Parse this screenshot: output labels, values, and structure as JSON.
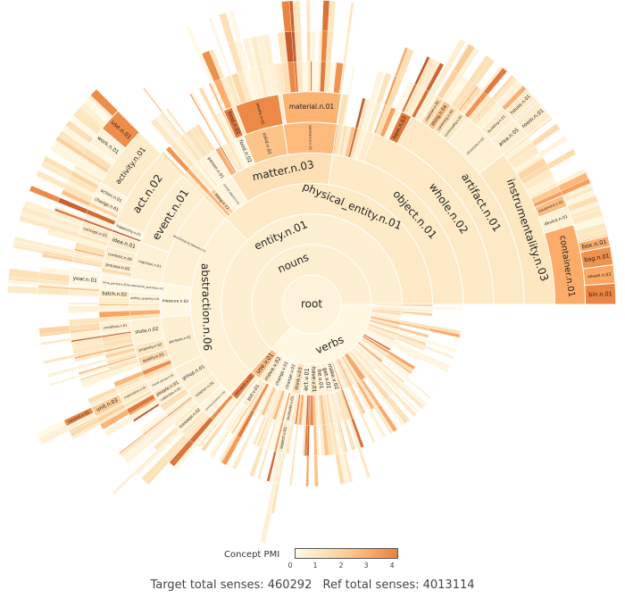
{
  "chart_data": {
    "type": "sunburst",
    "value_unit": "relative share of senses (out of 360)",
    "colorbar": {
      "title": "Concept PMI",
      "ticks": [
        "0",
        "1",
        "2",
        "3",
        "4"
      ],
      "range": [
        0,
        4
      ]
    },
    "colorscale": [
      "#fff9e6",
      "#fde5bd",
      "#fdcb94",
      "#fca864",
      "#e8813f",
      "#c4592b"
    ],
    "footer": {
      "target": "Target total senses: 460292",
      "ref": "Ref total senses: 4013114"
    },
    "tree": {
      "label": "root",
      "value": 360,
      "pmi": 0.3,
      "children": [
        {
          "label": "nouns",
          "value": 228,
          "pmi": 0.5,
          "children": [
            {
              "label": "entity.n.01",
              "value": 228,
              "pmi": 0.5,
              "children": [
                {
                  "label": "physical_entity.n.01",
                  "value": 135,
                  "pmi": 0.75,
                  "children": [
                    {
                      "label": "object.n.01",
                      "value": 82,
                      "pmi": 0.75,
                      "children": [
                        {
                          "label": "whole.n.02",
                          "value": 70,
                          "pmi": 0.75,
                          "children": [
                            {
                              "label": "artifact.n.01",
                              "value": 62,
                              "pmi": 0.8,
                              "children": [
                                {
                                  "label": "instrumentality.n.03",
                                  "value": 38,
                                  "pmi": 0.9,
                                  "children": [
                                    {
                                      "label": "container.n.01",
                                      "value": 17,
                                      "pmi": 2.9,
                                      "children": [
                                        {
                                          "label": "bin.n.01",
                                          "value": 4,
                                          "pmi": 3.9
                                        },
                                        {
                                          "label": "vessel.n.03",
                                          "value": 3.5,
                                          "pmi": 3.0
                                        },
                                        {
                                          "label": "bag.n.01",
                                          "value": 3.5,
                                          "pmi": 3.6
                                        },
                                        {
                                          "label": "box.n.01",
                                          "value": 2,
                                          "pmi": 2.9
                                        }
                                      ]
                                    },
                                    {
                                      "label": "device.n.01",
                                      "value": 4,
                                      "pmi": 0.4
                                    },
                                    {
                                      "label": "equipment.n.01",
                                      "value": 2.5,
                                      "pmi": 2.4
                                    }
                                  ]
                                },
                                {
                                  "label": "structure.n.01",
                                  "value": 12,
                                  "pmi": 0.4,
                                  "children": [
                                    {
                                      "label": "area.n.05",
                                      "value": 4.5,
                                      "pmi": 0.5,
                                      "children": [
                                        {
                                          "label": "room.n.01",
                                          "value": 4,
                                          "pmi": 0.6
                                        }
                                      ]
                                    },
                                    {
                                      "label": "building.n.01",
                                      "value": 3.5,
                                      "pmi": 0.6,
                                      "children": [
                                        {
                                          "label": "house.n.01",
                                          "value": 2.5,
                                          "pmi": 0.7
                                        }
                                      ]
                                    }
                                  ]
                                },
                                {
                                  "label": "commodity.n.01",
                                  "value": 3,
                                  "pmi": 0.8
                                },
                                {
                                  "label": "covering.n.02",
                                  "value": 2,
                                  "pmi": 1.4
                                },
                                {
                                  "label": "thing.n.04",
                                  "value": 2,
                                  "pmi": 2.3
                                },
                                {
                                  "label": "creation.n.02",
                                  "value": 2,
                                  "pmi": 1.5
                                }
                              ]
                            },
                            {
                              "label": "item.n.03",
                              "value": 3,
                              "pmi": 4.2
                            }
                          ]
                        }
                      ]
                    },
                    {
                      "label": "matter.n.03",
                      "value": 40,
                      "pmi": 1.2,
                      "children": [
                        {
                          "label": "substance.n.01",
                          "value": 17,
                          "pmi": 2.5,
                          "children": [
                            {
                              "label": "material.n.01",
                              "value": 16,
                              "pmi": 2.7
                            }
                          ]
                        },
                        {
                          "label": "solid.n.01",
                          "value": 13,
                          "pmi": 2.2,
                          "children": [
                            {
                              "label": "plastic.n.01",
                              "value": 12,
                              "pmi": 3.8
                            }
                          ]
                        },
                        {
                          "label": "food.n.02",
                          "value": 3,
                          "pmi": 0.2,
                          "children": [
                            {
                              "label": "food.n.01",
                              "value": 2.5,
                              "pmi": 4.2
                            }
                          ]
                        }
                      ]
                    },
                    {
                      "label": "causal_agent.n.01",
                      "value": 8,
                      "pmi": 0.2,
                      "children": [
                        {
                          "label": "person.n.01",
                          "value": 6,
                          "pmi": 0.2
                        }
                      ]
                    },
                    {
                      "label": "thing.n.12",
                      "value": 2,
                      "pmi": 1.8
                    }
                  ]
                },
                {
                  "label": "abstraction.n.06",
                  "value": 93,
                  "pmi": 0.4,
                  "children": [
                    {
                      "label": "psychological_feature.n.01",
                      "value": 37,
                      "pmi": 0.45,
                      "children": [
                        {
                          "label": "event.n.01",
                          "value": 25,
                          "pmi": 0.5,
                          "children": [
                            {
                              "label": "act.n.02",
                              "value": 22,
                              "pmi": 0.6,
                              "children": [
                                {
                                  "label": "activity.n.01",
                                  "value": 15,
                                  "pmi": 0.7,
                                  "children": [
                                    {
                                      "label": "use.n.01",
                                      "value": 5,
                                      "pmi": 3.7
                                    },
                                    {
                                      "label": "work.n.01",
                                      "value": 4,
                                      "pmi": 0.3
                                    }
                                  ]
                                },
                                {
                                  "label": "action.n.01",
                                  "value": 3,
                                  "pmi": 0.3
                                },
                                {
                                  "label": "change.n.01",
                                  "value": 2,
                                  "pmi": 0.5
                                }
                              ]
                            },
                            {
                              "label": "happening.n.01",
                              "value": 2,
                              "pmi": 0.3
                            }
                          ]
                        },
                        {
                          "label": "cognition.n.01",
                          "value": 12,
                          "pmi": 0.4,
                          "children": [
                            {
                              "label": "idea.n.01",
                              "value": 4,
                              "pmi": 0.6,
                              "children": [
                                {
                                  "label": "concept.n.01",
                                  "value": 3,
                                  "pmi": 0.7
                                }
                              ]
                            },
                            {
                              "label": "content.n.05",
                              "value": 4,
                              "pmi": 0.6
                            },
                            {
                              "label": "process.n.02",
                              "value": 2,
                              "pmi": 0.7
                            }
                          ]
                        }
                      ]
                    },
                    {
                      "label": "measure.n.02",
                      "value": 13,
                      "pmi": 0.1,
                      "children": [
                        {
                          "label": "fundamental_quantity.n.01",
                          "value": 4,
                          "pmi": 0.1,
                          "children": [
                            {
                              "label": "time_period.n.01",
                              "value": 4,
                              "pmi": 0.1,
                              "children": [
                                {
                                  "label": "year.n.01",
                                  "value": 3.5,
                                  "pmi": 0.1
                                }
                              ]
                            }
                          ]
                        },
                        {
                          "label": "definite_quantity.n.01",
                          "value": 4,
                          "pmi": 0.3,
                          "children": [
                            {
                              "label": "batch.n.02",
                              "value": 2,
                              "pmi": 0.8
                            }
                          ]
                        }
                      ]
                    },
                    {
                      "label": "attribute.n.02",
                      "value": 20,
                      "pmi": 0.5,
                      "children": [
                        {
                          "label": "state.n.02",
                          "value": 8,
                          "pmi": 0.4,
                          "children": [
                            {
                              "label": "condition.n.01",
                              "value": 3,
                              "pmi": 0.5
                            }
                          ]
                        },
                        {
                          "label": "property.n.02",
                          "value": 4,
                          "pmi": 0.9
                        },
                        {
                          "label": "quality.n.01",
                          "value": 3,
                          "pmi": 1.5
                        }
                      ]
                    },
                    {
                      "label": "group.n.01",
                      "value": 10,
                      "pmi": 0.5,
                      "children": [
                        {
                          "label": "social_group.n.01",
                          "value": 4,
                          "pmi": 0.4,
                          "children": [
                            {
                              "label": "organization.n.01",
                              "value": 3,
                              "pmi": 0.7,
                              "children": [
                                {
                                  "label": "unit.n.03",
                                  "value": 2.5,
                                  "pmi": 2.0,
                                  "children": [
                                    {
                                      "label": "council.n.01",
                                      "value": 1.5,
                                      "pmi": 3.8
                                    }
                                  ]
                                }
                              ]
                            }
                          ]
                        },
                        {
                          "label": "people.n.01",
                          "value": 2.5,
                          "pmi": 0.9
                        },
                        {
                          "label": "collection.n.01",
                          "value": 2,
                          "pmi": 0.6
                        }
                      ]
                    },
                    {
                      "label": "relation.n.01",
                      "value": 7,
                      "pmi": 0.5
                    },
                    {
                      "label": "communication.n.02",
                      "value": 6,
                      "pmi": 0.2,
                      "children": [
                        {
                          "label": "message.n.02",
                          "value": 2,
                          "pmi": 0.8
                        }
                      ]
                    }
                  ]
                }
              ]
            }
          ]
        },
        {
          "label": "verbs",
          "value": 132,
          "pmi": 0.1,
          "children": [
            {
              "label": "use.v.01",
              "value": 7,
              "pmi": 2.4,
              "children": [
                {
                  "label": "remove.v.02",
                  "value": 4,
                  "pmi": 3.9
                }
              ]
            },
            {
              "label": "move.v.02",
              "value": 8,
              "pmi": 0.6,
              "children": [
                {
                  "label": "put.v.01",
                  "value": 3,
                  "pmi": 0.7
                }
              ]
            },
            {
              "label": "change.v.01",
              "value": 7,
              "pmi": 0.3
            },
            {
              "label": "change.v.02",
              "value": 7,
              "pmi": 0.2
            },
            {
              "label": "think.v.03",
              "value": 6,
              "pmi": 1.2,
              "children": [
                {
                  "label": "evaluate.v.02",
                  "value": 3,
                  "pmi": 0.7,
                  "children": [
                    {
                      "label": "expect.v.01",
                      "value": 2,
                      "pmi": 1.0
                    }
                  ]
                }
              ]
            },
            {
              "label": "act.v.01",
              "value": 6,
              "pmi": 0.2
            },
            {
              "label": "have.v.01",
              "value": 5,
              "pmi": 1.0
            },
            {
              "label": "be.v.01",
              "value": 5,
              "pmi": 0.4
            },
            {
              "label": "get.v.01",
              "value": 5,
              "pmi": 0.5
            },
            {
              "label": "make.v.02",
              "value": 5,
              "pmi": 0.4
            }
          ]
        }
      ]
    }
  }
}
